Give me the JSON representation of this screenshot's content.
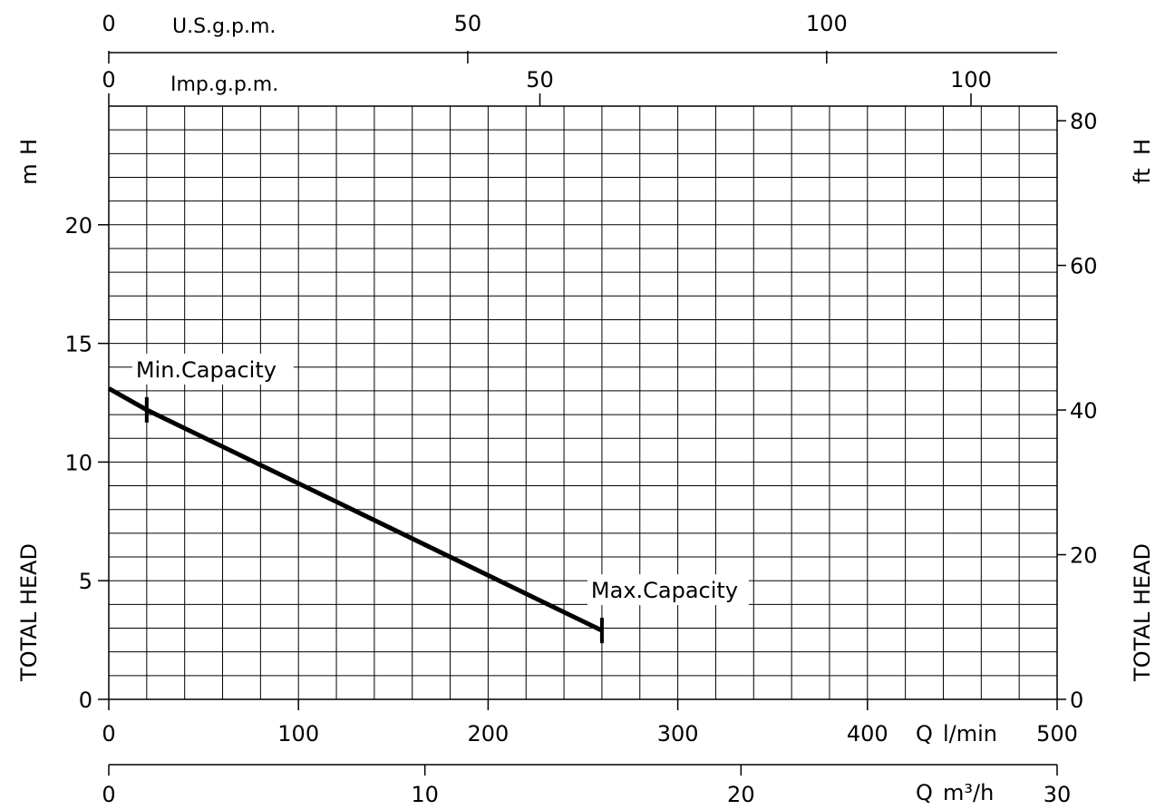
{
  "chart_data": {
    "type": "line",
    "x_unit": "l/min",
    "y_unit": "m",
    "xlim": [
      0,
      500
    ],
    "ylim": [
      0,
      25
    ],
    "grid": true,
    "series": [
      {
        "x": [
          0,
          20,
          260
        ],
        "y": [
          13.1,
          12.2,
          2.9
        ]
      }
    ],
    "annotations": [
      {
        "text": "Min.Capacity",
        "x": 20,
        "y": 12.2
      },
      {
        "text": "Max.Capacity",
        "x": 260,
        "y": 2.9
      }
    ],
    "axes": {
      "bottom": {
        "label_q": "Q",
        "label_unit": "l/min",
        "ticks": [
          0,
          100,
          200,
          300,
          400,
          500
        ],
        "tick_labels": [
          "0",
          "100",
          "200",
          "300",
          "400",
          "500"
        ],
        "range": [
          0,
          500
        ]
      },
      "bottom2": {
        "label_q": "Q",
        "label_unit": "m³/h",
        "ticks": [
          0,
          10,
          20,
          30
        ],
        "tick_labels": [
          "0",
          "10",
          "20",
          "30"
        ],
        "range": [
          0,
          30
        ]
      },
      "top_imp": {
        "label": "Imp.g.p.m.",
        "ticks": [
          0,
          50,
          100
        ],
        "tick_labels": [
          "0",
          "50",
          "100"
        ],
        "l_per_unit": 4.546
      },
      "top_us": {
        "label": "U.S.g.p.m.",
        "ticks": [
          0,
          50,
          100
        ],
        "tick_labels": [
          "0",
          "50",
          "100"
        ],
        "l_per_unit": 3.785
      },
      "left": {
        "label_h": "H",
        "label_unit": "m",
        "title": "TOTAL HEAD",
        "ticks": [
          0,
          5,
          10,
          15,
          20
        ],
        "tick_labels": [
          "0",
          "5",
          "10",
          "15",
          "20"
        ],
        "range": [
          0,
          25
        ]
      },
      "right": {
        "label_h": "H",
        "label_unit": "ft",
        "title": "TOTAL HEAD",
        "ticks": [
          0,
          20,
          40,
          60,
          80
        ],
        "tick_labels": [
          "0",
          "20",
          "40",
          "60",
          "80"
        ],
        "m_per_unit": 0.3048
      }
    }
  }
}
